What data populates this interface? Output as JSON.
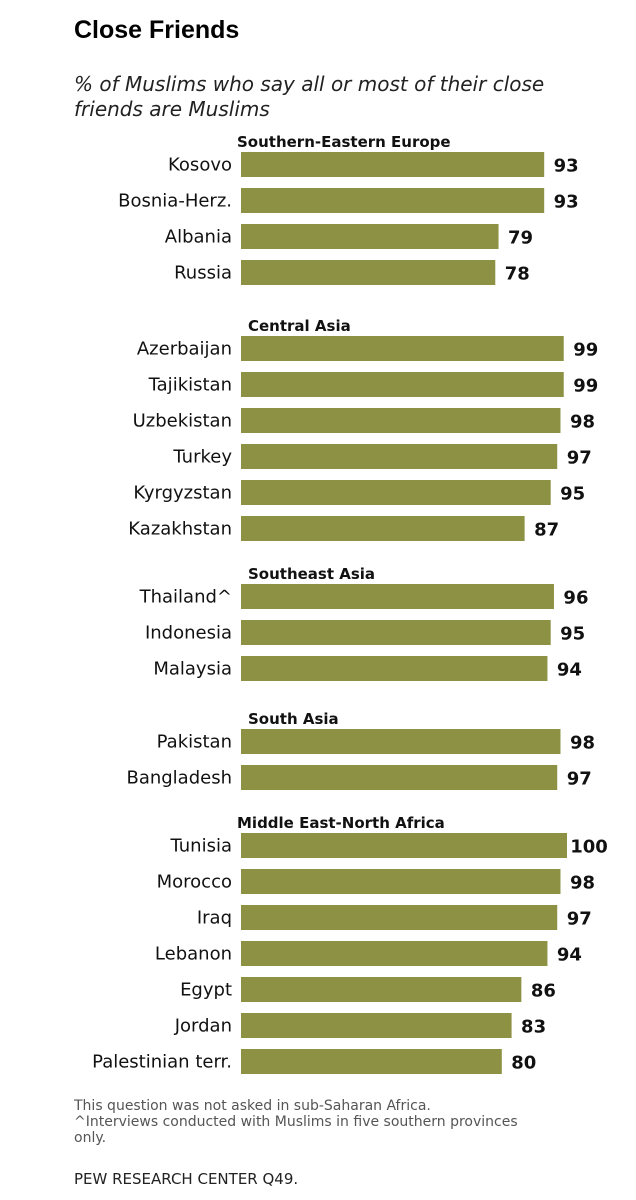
{
  "chart_data": {
    "type": "bar",
    "orientation": "horizontal",
    "title": "Close Friends",
    "subtitle": "% of Muslims who say all or most of their close friends are Muslims",
    "bar_color": "#8c9144",
    "xlim": [
      0,
      100
    ],
    "groups": [
      {
        "name": "Southern-Eastern  Europe",
        "items": [
          {
            "label": "Kosovo",
            "value": 93
          },
          {
            "label": "Bosnia-Herz.",
            "value": 93
          },
          {
            "label": "Albania",
            "value": 79
          },
          {
            "label": "Russia",
            "value": 78
          }
        ]
      },
      {
        "name": "Central Asia",
        "items": [
          {
            "label": "Azerbaijan",
            "value": 99
          },
          {
            "label": "Tajikistan",
            "value": 99
          },
          {
            "label": "Uzbekistan",
            "value": 98
          },
          {
            "label": "Turkey",
            "value": 97
          },
          {
            "label": "Kyrgyzstan",
            "value": 95
          },
          {
            "label": "Kazakhstan",
            "value": 87
          }
        ]
      },
      {
        "name": "Southeast  Asia",
        "items": [
          {
            "label": "Thailand^",
            "value": 96
          },
          {
            "label": "Indonesia",
            "value": 95
          },
          {
            "label": "Malaysia",
            "value": 94
          }
        ]
      },
      {
        "name": "South Asia",
        "items": [
          {
            "label": "Pakistan",
            "value": 98
          },
          {
            "label": "Bangladesh",
            "value": 97
          }
        ]
      },
      {
        "name": "Middle East-North  Africa",
        "items": [
          {
            "label": "Tunisia",
            "value": 100
          },
          {
            "label": "Morocco",
            "value": 98
          },
          {
            "label": "Iraq",
            "value": 97
          },
          {
            "label": "Lebanon",
            "value": 94
          },
          {
            "label": "Egypt",
            "value": 86
          },
          {
            "label": "Jordan",
            "value": 83
          },
          {
            "label": "Palestinian terr.",
            "value": 80
          }
        ]
      }
    ]
  },
  "footnotes": {
    "line1": "This question was not asked in sub-Saharan Africa.",
    "line2": "^Interviews conducted with Muslims in five  southern provinces only."
  },
  "source": "PEW RESEARCH  CENTER Q49."
}
